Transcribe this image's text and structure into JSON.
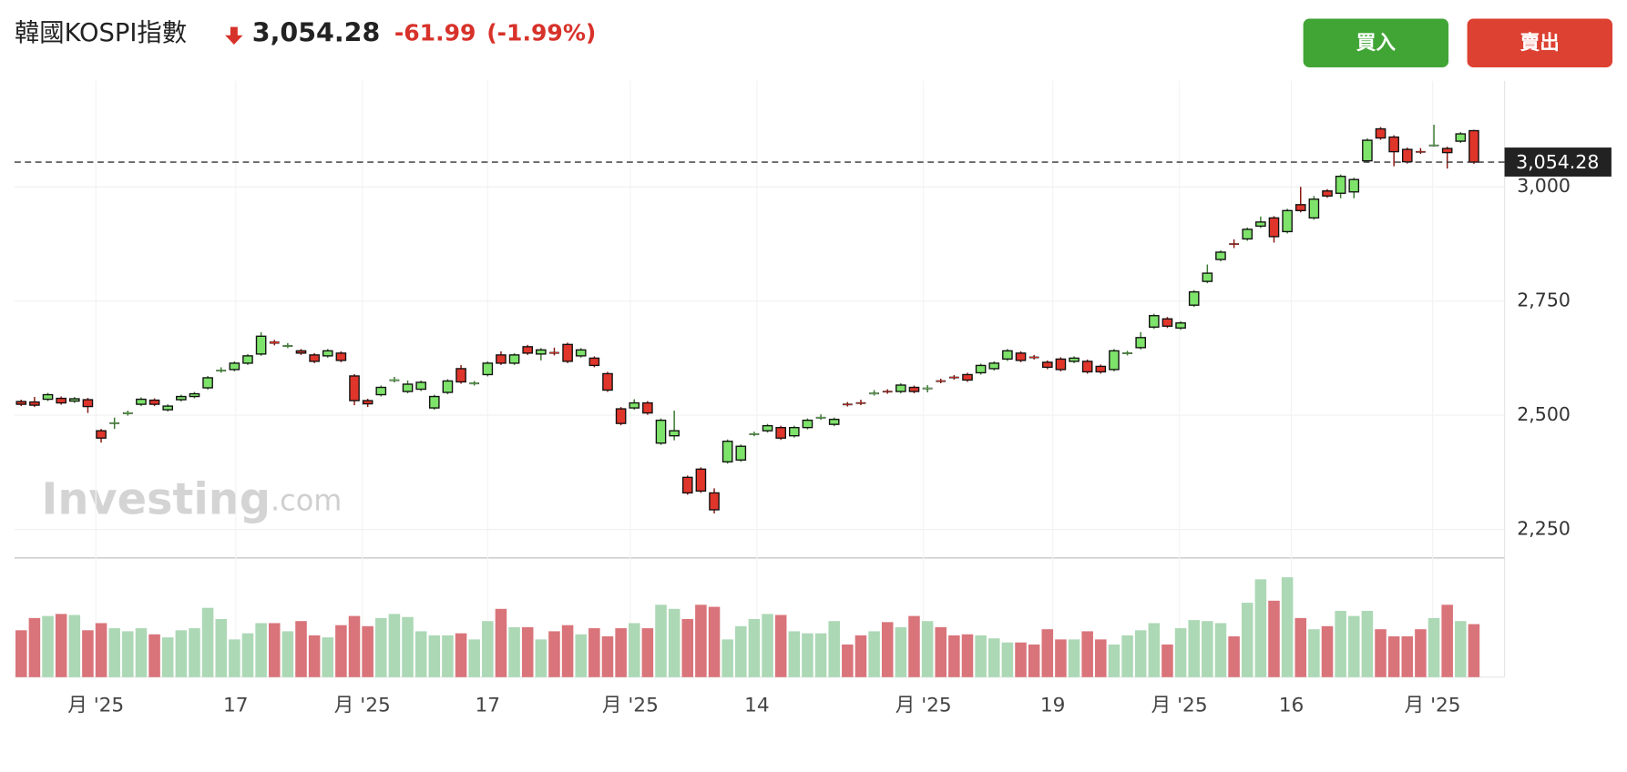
{
  "chart_data": {
    "type": "candlestick",
    "title": "韓國KOSPI指數",
    "last_price": {
      "value": 3054.28,
      "label": "3,054.28"
    },
    "change": -61.99,
    "change_pct": {
      "value": -1.99,
      "label": "(-1.99%)"
    },
    "buttons": [
      "買入",
      "賣出"
    ],
    "watermark": "Investing",
    "watermark_suffix": ".com",
    "up_color": "#7ee36a",
    "down_color": "#e0352b",
    "volume_up_color": "#acd8b5",
    "volume_down_color": "#d9747a",
    "grid": true,
    "ylim": [
      2190,
      3232
    ],
    "yticks": [
      {
        "value": 2250,
        "label": "2,250"
      },
      {
        "value": 2500,
        "label": "2,500"
      },
      {
        "value": 2750,
        "label": "2,750"
      },
      {
        "value": 3000,
        "label": "3,000"
      }
    ],
    "vlim": [
      0,
      115
    ],
    "xlim": [
      -0.5,
      111.3
    ],
    "xticks": [
      {
        "value": 5.6,
        "label": "月 '25"
      },
      {
        "value": 16.1,
        "label": "17"
      },
      {
        "value": 25.6,
        "label": "月 '25"
      },
      {
        "value": 35.0,
        "label": "17"
      },
      {
        "value": 45.7,
        "label": "月 '25"
      },
      {
        "value": 55.2,
        "label": "14"
      },
      {
        "value": 67.7,
        "label": "月 '25"
      },
      {
        "value": 77.4,
        "label": "19"
      },
      {
        "value": 86.9,
        "label": "月 '25"
      },
      {
        "value": 95.3,
        "label": "16"
      },
      {
        "value": 105.9,
        "label": "月 '25"
      }
    ],
    "open": [
      2530,
      2529,
      2535,
      2537,
      2531,
      2534,
      2466,
      2482,
      2503,
      2524,
      2533,
      2512,
      2534,
      2541,
      2560,
      2597,
      2600,
      2614,
      2634,
      2661,
      2651,
      2641,
      2632,
      2630,
      2636,
      2586,
      2532,
      2545,
      2576,
      2552,
      2557,
      2516,
      2550,
      2602,
      2569,
      2589,
      2632,
      2614,
      2650,
      2634,
      2638,
      2655,
      2630,
      2625,
      2591,
      2514,
      2516,
      2527,
      2439,
      2455,
      2364,
      2382,
      2330,
      2398,
      2402,
      2458,
      2466,
      2473,
      2455,
      2473,
      2494,
      2480,
      2525,
      2528,
      2547,
      2553,
      2552,
      2561,
      2558,
      2576,
      2584,
      2589,
      2593,
      2602,
      2623,
      2636,
      2628,
      2616,
      2623,
      2618,
      2618,
      2607,
      2600,
      2635,
      2648,
      2693,
      2711,
      2691,
      2741,
      2793,
      2841,
      2876,
      2886,
      2914,
      2932,
      2902,
      2961,
      2932,
      2991,
      2986,
      2989,
      3057,
      3127,
      3109,
      3082,
      3078,
      3090,
      3084,
      3100,
      3123
    ],
    "high": [
      2534,
      2540,
      2549,
      2541,
      2540,
      2538,
      2470,
      2495,
      2510,
      2539,
      2537,
      2524,
      2545,
      2551,
      2586,
      2605,
      2618,
      2634,
      2682,
      2665,
      2658,
      2645,
      2636,
      2645,
      2640,
      2590,
      2536,
      2565,
      2584,
      2576,
      2576,
      2545,
      2579,
      2610,
      2575,
      2618,
      2640,
      2636,
      2654,
      2647,
      2648,
      2659,
      2647,
      2629,
      2595,
      2518,
      2535,
      2531,
      2493,
      2510,
      2368,
      2386,
      2340,
      2447,
      2436,
      2464,
      2481,
      2477,
      2477,
      2493,
      2502,
      2495,
      2529,
      2534,
      2555,
      2557,
      2570,
      2565,
      2566,
      2580,
      2588,
      2593,
      2613,
      2618,
      2645,
      2640,
      2632,
      2620,
      2627,
      2629,
      2622,
      2611,
      2645,
      2641,
      2682,
      2722,
      2715,
      2706,
      2774,
      2830,
      2861,
      2885,
      2911,
      2935,
      2936,
      2952,
      3000,
      2980,
      2995,
      3027,
      3020,
      3106,
      3131,
      3113,
      3086,
      3085,
      3136,
      3088,
      3120,
      3125
    ],
    "low": [
      2520,
      2518,
      2531,
      2523,
      2527,
      2505,
      2440,
      2470,
      2499,
      2520,
      2520,
      2508,
      2530,
      2537,
      2556,
      2593,
      2596,
      2610,
      2630,
      2653,
      2647,
      2632,
      2614,
      2626,
      2616,
      2522,
      2518,
      2541,
      2572,
      2548,
      2553,
      2512,
      2546,
      2569,
      2565,
      2585,
      2610,
      2610,
      2632,
      2620,
      2631,
      2614,
      2626,
      2605,
      2551,
      2478,
      2512,
      2501,
      2435,
      2445,
      2326,
      2330,
      2285,
      2394,
      2398,
      2454,
      2462,
      2446,
      2451,
      2469,
      2490,
      2476,
      2519,
      2522,
      2543,
      2547,
      2548,
      2548,
      2550,
      2570,
      2578,
      2573,
      2589,
      2598,
      2619,
      2616,
      2622,
      2601,
      2596,
      2614,
      2591,
      2591,
      2596,
      2631,
      2644,
      2689,
      2691,
      2687,
      2737,
      2789,
      2837,
      2866,
      2882,
      2910,
      2878,
      2898,
      2944,
      2928,
      2976,
      2975,
      2975,
      3053,
      3103,
      3045,
      3051,
      3072,
      3088,
      3040,
      3096,
      3050
    ],
    "close": [
      2524,
      2522,
      2545,
      2527,
      2536,
      2519,
      2450,
      2484,
      2506,
      2535,
      2524,
      2520,
      2541,
      2547,
      2582,
      2599,
      2614,
      2630,
      2673,
      2657,
      2653,
      2636,
      2618,
      2641,
      2620,
      2532,
      2525,
      2561,
      2578,
      2568,
      2572,
      2541,
      2575,
      2573,
      2571,
      2614,
      2614,
      2632,
      2636,
      2643,
      2635,
      2618,
      2643,
      2609,
      2555,
      2482,
      2527,
      2505,
      2489,
      2466,
      2330,
      2334,
      2293,
      2443,
      2432,
      2460,
      2477,
      2450,
      2473,
      2489,
      2496,
      2491,
      2523,
      2526,
      2549,
      2551,
      2566,
      2552,
      2560,
      2574,
      2582,
      2577,
      2609,
      2614,
      2641,
      2620,
      2626,
      2605,
      2600,
      2625,
      2595,
      2595,
      2641,
      2637,
      2670,
      2718,
      2695,
      2702,
      2770,
      2811,
      2857,
      2874,
      2907,
      2923,
      2891,
      2948,
      2948,
      2973,
      2980,
      3023,
      3016,
      3102,
      3107,
      3077,
      3055,
      3076,
      3092,
      3075,
      3116,
      3054.28
    ],
    "volume": [
      46,
      58,
      60,
      62,
      61,
      46,
      53,
      48,
      45,
      48,
      42,
      39,
      46,
      48,
      68,
      57,
      37,
      43,
      53,
      53,
      45,
      55,
      41,
      39,
      51,
      60,
      50,
      58,
      62,
      59,
      45,
      41,
      41,
      43,
      37,
      55,
      67,
      49,
      49,
      37,
      45,
      51,
      42,
      48,
      40,
      48,
      53,
      48,
      71,
      67,
      57,
      71,
      69,
      37,
      50,
      57,
      62,
      61,
      45,
      43,
      43,
      55,
      32,
      41,
      45,
      54,
      49,
      60,
      55,
      49,
      41,
      42,
      41,
      38,
      34,
      34,
      32,
      47,
      37,
      37,
      45,
      37,
      32,
      41,
      46,
      53,
      32,
      48,
      56,
      55,
      53,
      40,
      73,
      96,
      75,
      98,
      58,
      47,
      50,
      65,
      60,
      65,
      47,
      40,
      40,
      47,
      58,
      71,
      55,
      52
    ]
  }
}
